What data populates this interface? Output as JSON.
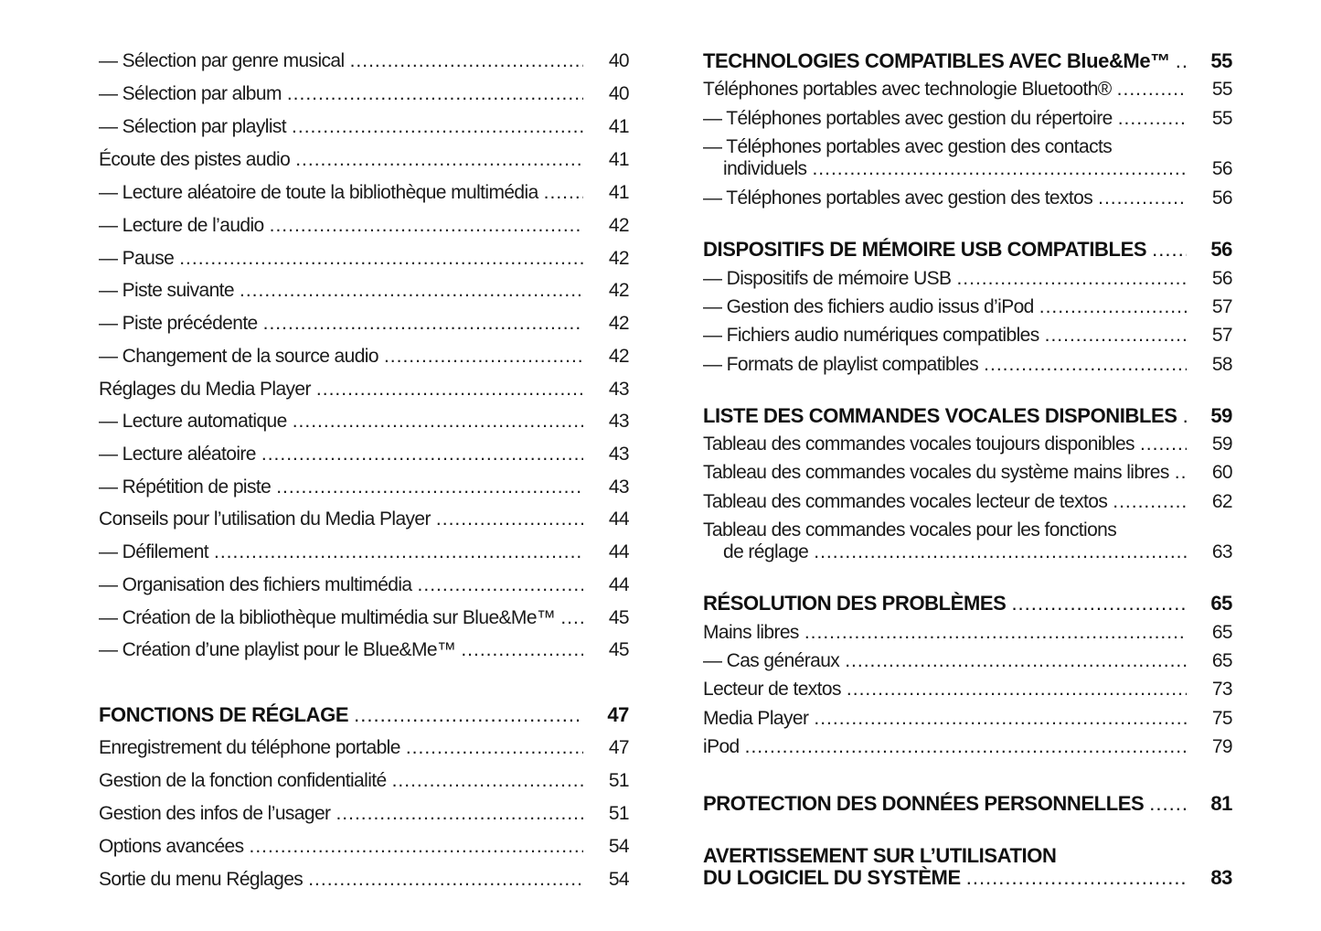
{
  "left_column": [
    {
      "label": "— Sélection par genre musical",
      "page": "40"
    },
    {
      "label": "— Sélection par album",
      "page": "40"
    },
    {
      "label": "— Sélection par playlist",
      "page": "41"
    },
    {
      "label": "Écoute des pistes audio",
      "page": "41"
    },
    {
      "label": "— Lecture aléatoire de toute la bibliothèque multimédia",
      "page": "41"
    },
    {
      "label": "— Lecture de l’audio",
      "page": "42"
    },
    {
      "label": "— Pause",
      "page": "42"
    },
    {
      "label": "— Piste suivante",
      "page": "42"
    },
    {
      "label": "— Piste précédente",
      "page": "42"
    },
    {
      "label": "— Changement de la source audio",
      "page": "42"
    },
    {
      "label": "Réglages du Media Player",
      "page": "43"
    },
    {
      "label": "— Lecture automatique",
      "page": "43"
    },
    {
      "label": "— Lecture aléatoire",
      "page": "43"
    },
    {
      "label": "— Répétition de piste",
      "page": "43"
    },
    {
      "label": "Conseils pour l’utilisation du Media Player",
      "page": "44"
    },
    {
      "label": "— Défilement",
      "page": "44"
    },
    {
      "label": "— Organisation des fichiers multimédia",
      "page": "44"
    },
    {
      "label": "— Création de la bibliothèque multimédia sur Blue&Me™",
      "page": "45"
    },
    {
      "label": "— Création d’une playlist pour le Blue&Me™",
      "page": "45"
    },
    {
      "label": "FONCTIONS DE RÉGLAGE",
      "page": "47",
      "heading": true
    },
    {
      "label": "Enregistrement du téléphone portable",
      "page": "47"
    },
    {
      "label": "Gestion de la fonction confidentialité",
      "page": "51"
    },
    {
      "label": "Gestion des infos de l’usager",
      "page": "51"
    },
    {
      "label": "Options avancées",
      "page": "54"
    },
    {
      "label": "Sortie du menu Réglages",
      "page": "54"
    }
  ],
  "right_column": [
    {
      "label": "TECHNOLOGIES COMPATIBLES AVEC Blue&Me™",
      "page": "55",
      "heading": true
    },
    {
      "label": "Téléphones portables avec technologie Bluetooth®",
      "page": "55"
    },
    {
      "label": "— Téléphones portables avec gestion du répertoire",
      "page": "55"
    },
    {
      "label": "— Téléphones portables avec gestion des contacts",
      "label2": "individuels",
      "page": "56"
    },
    {
      "label": "— Téléphones portables avec gestion des textos",
      "page": "56"
    },
    {
      "label": "DISPOSITIFS DE MÉMOIRE USB COMPATIBLES",
      "page": "56",
      "heading": true
    },
    {
      "label": "— Dispositifs de mémoire USB",
      "page": "56"
    },
    {
      "label": "— Gestion des fichiers audio issus d’iPod",
      "page": "57"
    },
    {
      "label": "— Fichiers audio numériques compatibles",
      "page": "57"
    },
    {
      "label": "— Formats de playlist compatibles",
      "page": "58"
    },
    {
      "label": "LISTE DES COMMANDES VOCALES DISPONIBLES",
      "page": "59",
      "heading": true
    },
    {
      "label": "Tableau des commandes vocales toujours disponibles",
      "page": "59"
    },
    {
      "label": "Tableau des commandes vocales du système mains libres",
      "page": "60"
    },
    {
      "label": "Tableau des commandes vocales lecteur de textos",
      "page": "62"
    },
    {
      "label": "Tableau des commandes vocales pour les fonctions",
      "label2": "de réglage",
      "page": "63"
    },
    {
      "label": "RÉSOLUTION DES PROBLÈMES",
      "page": "65",
      "heading": true
    },
    {
      "label": "Mains libres",
      "page": "65"
    },
    {
      "label": "— Cas généraux",
      "page": "65"
    },
    {
      "label": "Lecteur de textos",
      "page": "73"
    },
    {
      "label": "Media Player",
      "page": "75"
    },
    {
      "label": "iPod",
      "page": "79"
    },
    {
      "label": "PROTECTION DES DONNÉES PERSONNELLES",
      "page": "81",
      "heading": true
    },
    {
      "label": "AVERTISSEMENT SUR L’UTILISATION",
      "label2": "DU LOGICIEL DU SYSTÈME",
      "page": "83",
      "heading": true
    }
  ]
}
